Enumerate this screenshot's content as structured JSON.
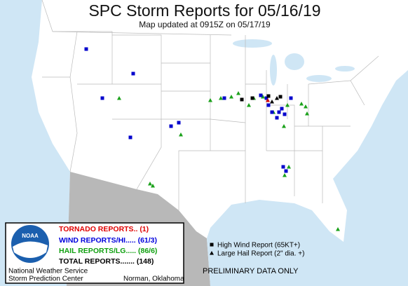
{
  "header": {
    "title": "SPC Storm Reports for 05/16/19",
    "subtitle": "Map updated at 0915Z on 05/17/19"
  },
  "legend": {
    "tornado": "TORNADO REPORTS.. (1)",
    "wind": "WIND REPORTS/HI..... (61/3)",
    "hail": "HAIL REPORTS/LG..... (86/6)",
    "total": "TOTAL REPORTS....... (148)"
  },
  "logo": "NOAA",
  "agency": {
    "line1": "National Weather Service",
    "line2": "Storm Prediction Center",
    "city": "Norman, Oklahoma"
  },
  "key": {
    "high_wind": "High Wind Report (65KT+)",
    "large_hail": "Large Hail Report (2\" dia. +)"
  },
  "footer": "PRELIMINARY DATA ONLY"
}
